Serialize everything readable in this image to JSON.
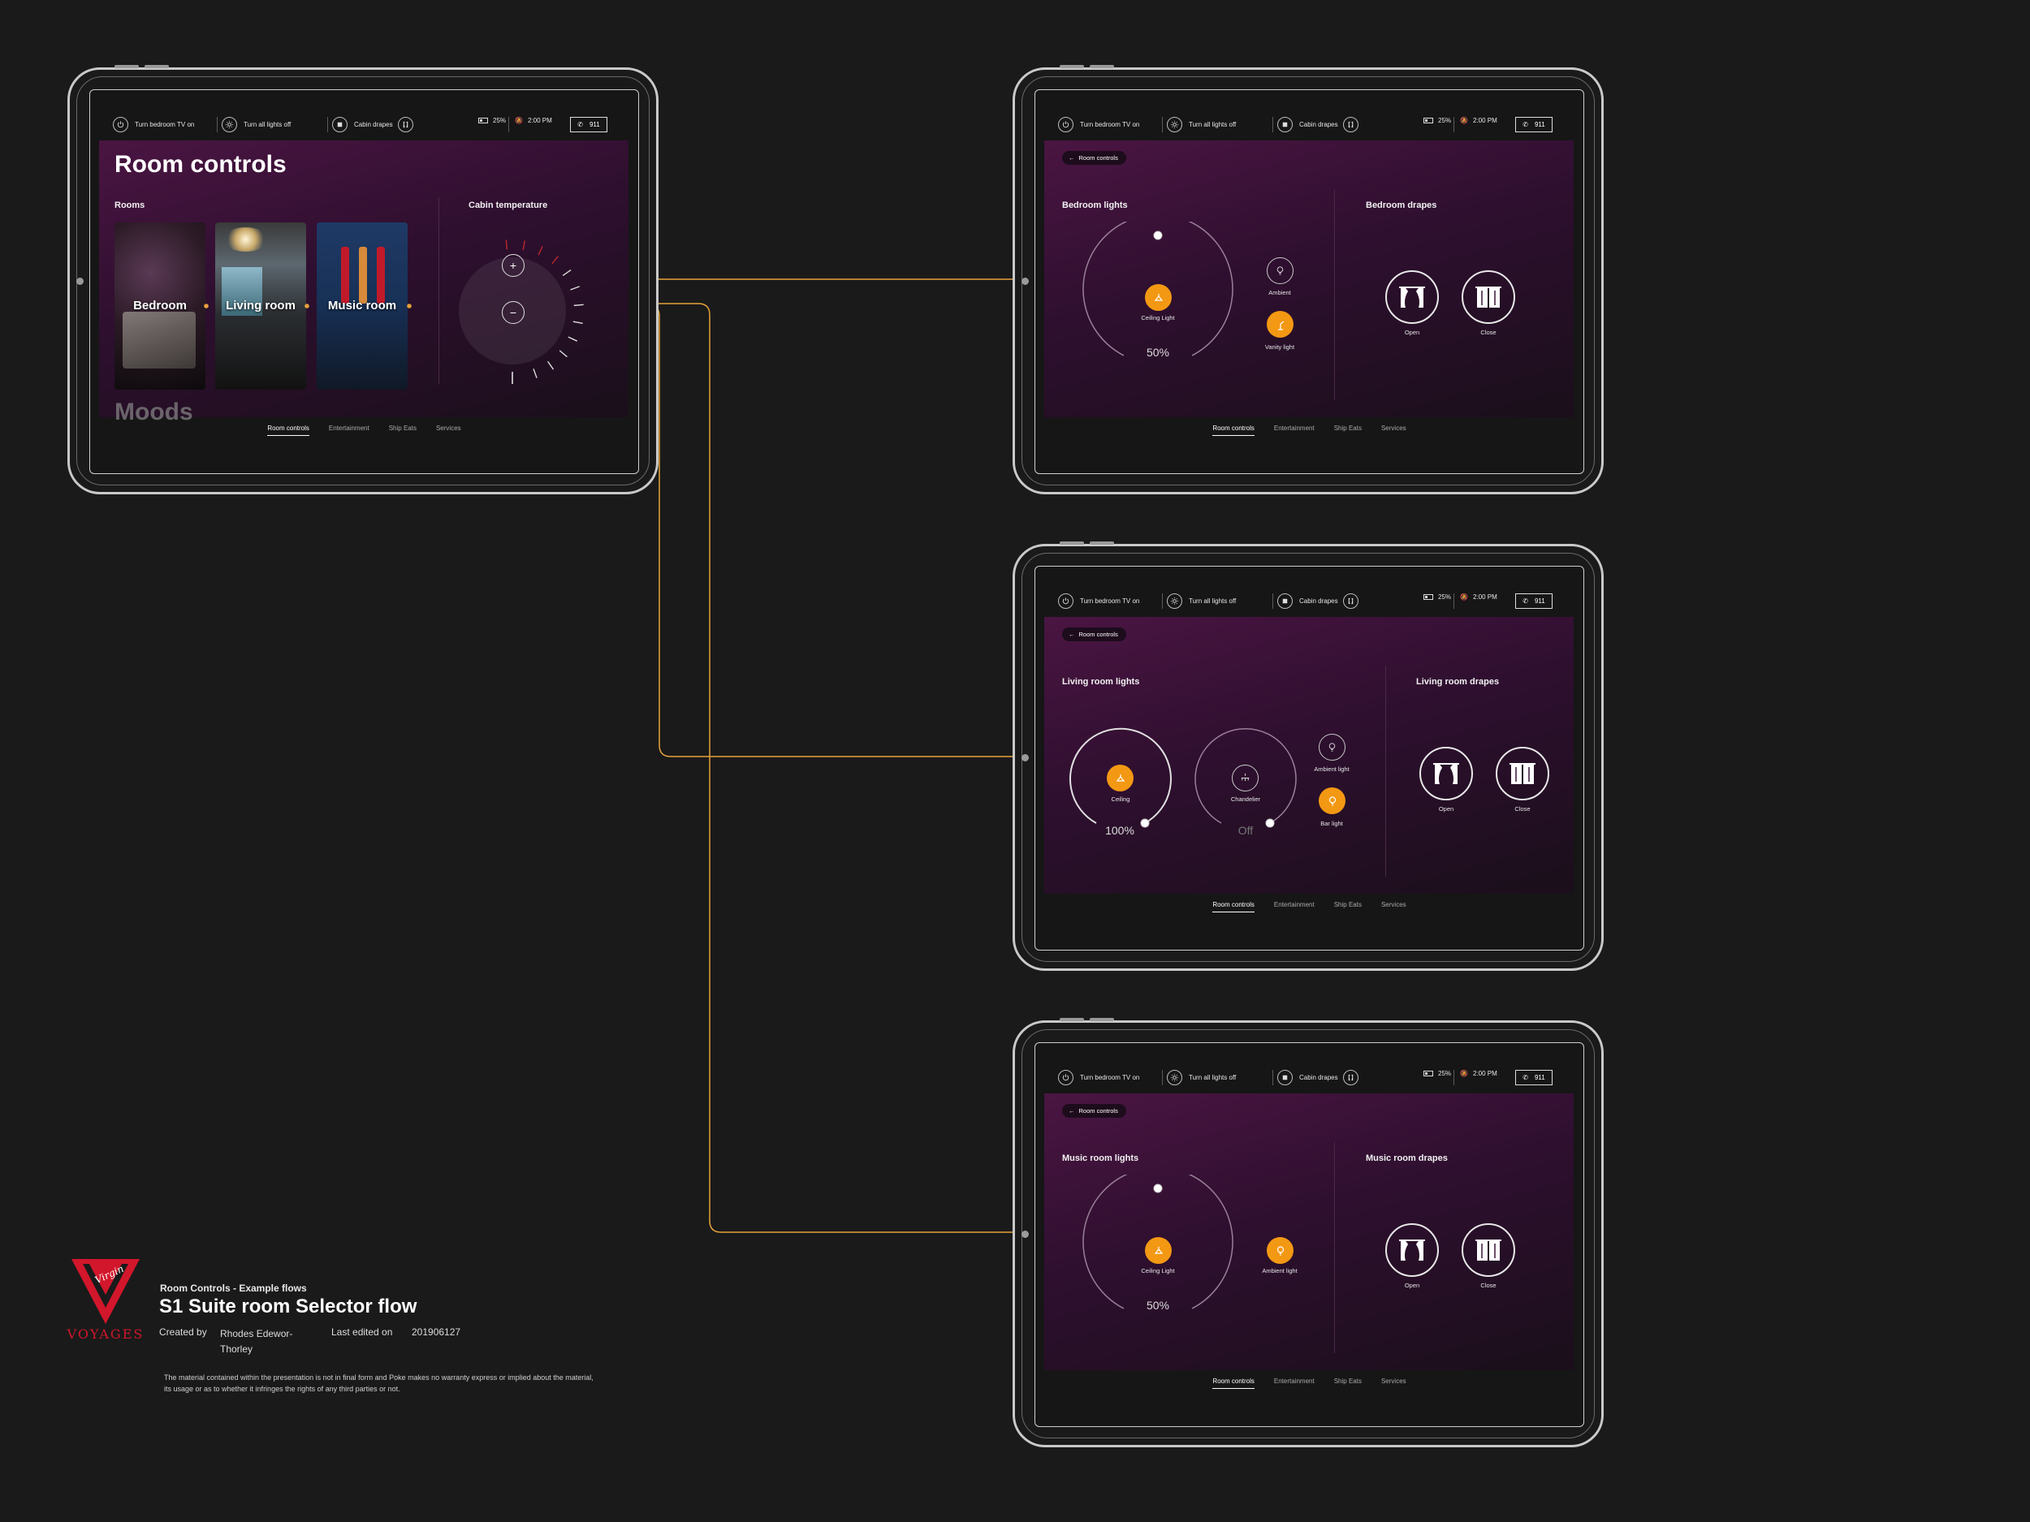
{
  "status_bar": {
    "tv_label": "Turn bedroom TV on",
    "lights_label": "Turn all lights off",
    "drapes_label": "Cabin drapes",
    "battery": "25%",
    "time": "2:00 PM",
    "emergency": "911"
  },
  "bottom_nav": [
    "Room controls",
    "Entertainment",
    "Ship Eats",
    "Services"
  ],
  "main_screen": {
    "title": "Room controls",
    "rooms_label": "Rooms",
    "rooms": [
      "Bedroom",
      "Living room",
      "Music room"
    ],
    "temperature_label": "Cabin temperature",
    "plus": "+",
    "minus": "−",
    "moods_label": "Moods"
  },
  "back_label": "Room controls",
  "bedroom": {
    "lights_title": "Bedroom lights",
    "drapes_title": "Bedroom drapes",
    "main_light": "Ceiling Light",
    "level": "50%",
    "level_value": 0.5,
    "side_lights": [
      "Ambient",
      "Vanity light"
    ],
    "drape_buttons": [
      "Open",
      "Close"
    ]
  },
  "living_room": {
    "lights_title": "Living room lights",
    "drapes_title": "Living room drapes",
    "dials": [
      {
        "label": "Ceiling",
        "level": "100%",
        "level_value": 1.0
      },
      {
        "label": "Chandelier",
        "level": "Off",
        "level_value": 0.0
      }
    ],
    "side_lights": [
      "Ambient light",
      "Bar light"
    ],
    "drape_buttons": [
      "Open",
      "Close"
    ]
  },
  "music_room": {
    "lights_title": "Music room lights",
    "drapes_title": "Music room drapes",
    "main_light": "Ceiling Light",
    "level": "50%",
    "level_value": 0.5,
    "side_lights": [
      "Ambient light"
    ],
    "drape_buttons": [
      "Open",
      "Close"
    ]
  },
  "legend": {
    "brand_script": "Virgin",
    "brand_name": "VOYAGES",
    "subtitle": "Room Controls - Example flows",
    "title": "S1 Suite room Selector flow",
    "created_by_label": "Created by",
    "author": "Rhodes Edewor-Thorley",
    "last_edited_label": "Last edited on",
    "last_edited": "201906127",
    "disclaimer": "The material contained within the presentation is not in final form and Poke makes no warranty express or implied about the material, its usage or as to whether it infringes the rights of any third parties or not."
  },
  "colors": {
    "background": "#1a1a1a",
    "accent_orange": "#f39813",
    "flow_line": "#e6a23a",
    "panel_purple": "#4a1542",
    "brand_red": "#d2162b"
  }
}
